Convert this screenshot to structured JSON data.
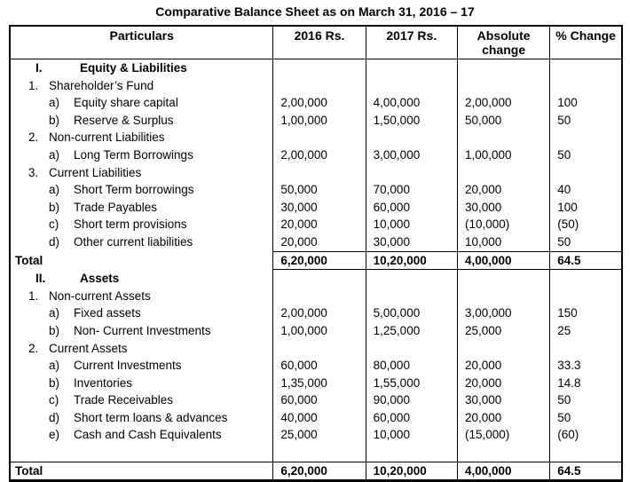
{
  "title": "Comparative Balance Sheet as on March 31, 2016 – 17",
  "colors": {
    "text": "#000000",
    "border": "#000000",
    "background": "#ffffff"
  },
  "table": {
    "headers": {
      "particulars": "Particulars",
      "y2016": "2016 Rs.",
      "y2017": "2017 Rs.",
      "absolute": {
        "line1": "Absolute",
        "line2": "change"
      },
      "pct": "% Change"
    },
    "rows": [
      {
        "type": "section1",
        "num": "I.",
        "label": "Equity & Liabilities",
        "v2016": "",
        "v2017": "",
        "abs": "",
        "pct": ""
      },
      {
        "type": "section2",
        "num": "1.",
        "label": "Shareholder’s Fund",
        "v2016": "",
        "v2017": "",
        "abs": "",
        "pct": ""
      },
      {
        "type": "item",
        "num": "a)",
        "label": "Equity share capital",
        "v2016": "2,00,000",
        "v2017": "4,00,000",
        "abs": "2,00,000",
        "pct": "100"
      },
      {
        "type": "item",
        "num": "b)",
        "label": "Reserve & Surplus",
        "v2016": "1,00,000",
        "v2017": "1,50,000",
        "abs": "50,000",
        "pct": "50"
      },
      {
        "type": "section2",
        "num": "2.",
        "label": "Non-current Liabilities",
        "v2016": "",
        "v2017": "",
        "abs": "",
        "pct": ""
      },
      {
        "type": "item",
        "num": "a)",
        "label": "Long Term Borrowings",
        "v2016": "2,00,000",
        "v2017": "3,00,000",
        "abs": "1,00,000",
        "pct": "50"
      },
      {
        "type": "section2",
        "num": "3.",
        "label": "Current Liabilities",
        "v2016": "",
        "v2017": "",
        "abs": "",
        "pct": ""
      },
      {
        "type": "item",
        "num": "a)",
        "label": "Short Term borrowings",
        "v2016": "50,000",
        "v2017": "70,000",
        "abs": "20,000",
        "pct": "40"
      },
      {
        "type": "item",
        "num": "b)",
        "label": "Trade Payables",
        "v2016": "30,000",
        "v2017": "60,000",
        "abs": "30,000",
        "pct": "100"
      },
      {
        "type": "item",
        "num": "c)",
        "label": "Short term provisions",
        "v2016": "20,000",
        "v2017": "10,000",
        "abs": "(10,000)",
        "pct": "(50)"
      },
      {
        "type": "item",
        "num": "d)",
        "label": "Other current liabilities",
        "v2016": "20,000",
        "v2017": "30,000",
        "abs": "10,000",
        "pct": "50"
      },
      {
        "type": "total_section",
        "num": "",
        "label": "Total",
        "v2016": "6,20,000",
        "v2017": "10,20,000",
        "abs": "4,00,000",
        "pct": "64.5"
      },
      {
        "type": "section1",
        "num": "II.",
        "label": "Assets",
        "v2016": "",
        "v2017": "",
        "abs": "",
        "pct": ""
      },
      {
        "type": "section2",
        "num": "1.",
        "label": "Non-current Assets",
        "v2016": "",
        "v2017": "",
        "abs": "",
        "pct": ""
      },
      {
        "type": "item",
        "num": "a)",
        "label": "Fixed assets",
        "v2016": "2,00,000",
        "v2017": "5,00,000",
        "abs": "3,00,000",
        "pct": "150"
      },
      {
        "type": "item",
        "num": "b)",
        "label": "Non- Current Investments",
        "v2016": "1,00,000",
        "v2017": "1,25,000",
        "abs": "25,000",
        "pct": "25"
      },
      {
        "type": "section2",
        "num": "2.",
        "label": "Current Assets",
        "v2016": "",
        "v2017": "",
        "abs": "",
        "pct": ""
      },
      {
        "type": "item",
        "num": "a)",
        "label": "Current Investments",
        "v2016": "60,000",
        "v2017": "80,000",
        "abs": "20,000",
        "pct": "33.3"
      },
      {
        "type": "item",
        "num": "b)",
        "label": "Inventories",
        "v2016": "1,35,000",
        "v2017": "1,55,000",
        "abs": "20,000",
        "pct": "14.8"
      },
      {
        "type": "item",
        "num": "c)",
        "label": "Trade Receivables",
        "v2016": "60,000",
        "v2017": "90,000",
        "abs": "30,000",
        "pct": "50"
      },
      {
        "type": "item",
        "num": "d)",
        "label": "Short term loans & advances",
        "v2016": "40,000",
        "v2017": "60,000",
        "abs": "20,000",
        "pct": "50"
      },
      {
        "type": "item",
        "num": "e)",
        "label": "Cash and Cash Equivalents",
        "v2016": "25,000",
        "v2017": "10,000",
        "abs": "(15,000)",
        "pct": "(60)"
      },
      {
        "type": "empty",
        "num": "",
        "label": "",
        "v2016": "",
        "v2017": "",
        "abs": "",
        "pct": ""
      },
      {
        "type": "total_grand",
        "num": "",
        "label": "Total",
        "v2016": "6,20,000",
        "v2017": "10,20,000",
        "abs": "4,00,000",
        "pct": "64.5"
      }
    ]
  }
}
